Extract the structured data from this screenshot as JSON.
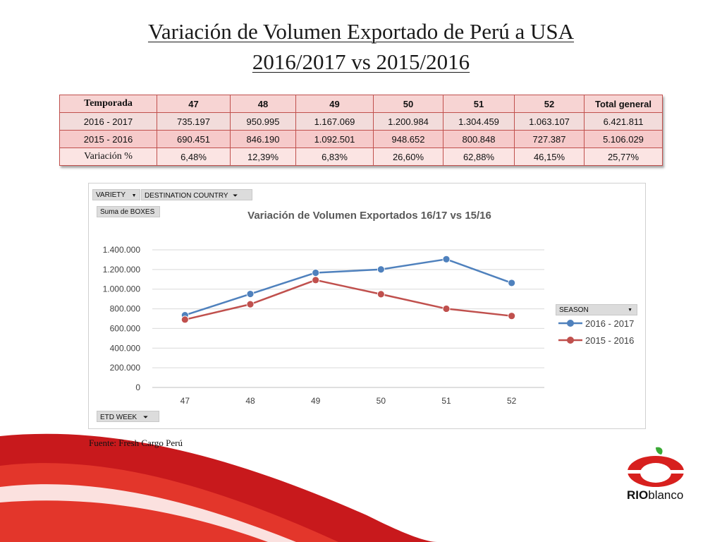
{
  "title": {
    "line1": "Variación de Volumen Exportado de Perú a USA",
    "line2": "2016/2017 vs 2015/2016"
  },
  "table": {
    "headers": [
      "Temporada",
      "47",
      "48",
      "49",
      "50",
      "51",
      "52",
      "Total general"
    ],
    "rows": [
      [
        "2016 - 2017",
        "735.197",
        "950.995",
        "1.167.069",
        "1.200.984",
        "1.304.459",
        "1.063.107",
        "6.421.811"
      ],
      [
        "2015 - 2016",
        "690.451",
        "846.190",
        "1.092.501",
        "948.652",
        "800.848",
        "727.387",
        "5.106.029"
      ],
      [
        "Variación %",
        "6,48%",
        "12,39%",
        "6,83%",
        "26,60%",
        "62,88%",
        "46,15%",
        "25,77%"
      ]
    ]
  },
  "pivot_controls": {
    "variety": "VARIETY",
    "destination": "DESTINATION COUNTRY",
    "sum_label": "Suma de BOXES",
    "etd_week": "ETD WEEK",
    "season": "SEASON"
  },
  "chart_data": {
    "type": "line",
    "title": "Variación de Volumen Exportados 16/17 vs 15/16",
    "categories": [
      "47",
      "48",
      "49",
      "50",
      "51",
      "52"
    ],
    "series": [
      {
        "name": "2016 - 2017",
        "values": [
          735197,
          950995,
          1167069,
          1200984,
          1304459,
          1063107
        ],
        "color": "#4f81bd"
      },
      {
        "name": "2015 - 2016",
        "values": [
          690451,
          846190,
          1092501,
          948652,
          800848,
          727387
        ],
        "color": "#c0504d"
      }
    ],
    "ylim": [
      0,
      1400000
    ],
    "yticks": [
      0,
      200000,
      400000,
      600000,
      800000,
      1000000,
      1200000,
      1400000
    ],
    "ytick_labels": [
      "0",
      "200.000",
      "400.000",
      "600.000",
      "800.000",
      "1.000.000",
      "1.200.000",
      "1.400.000"
    ],
    "xlabel": "",
    "ylabel": "",
    "grid": true,
    "legend_position": "right"
  },
  "footnote": "Fuente: Fresh Cargo Perú",
  "logo": {
    "bold": "RIO",
    "rest": "blanco"
  },
  "colors": {
    "brand_red": "#d7201e",
    "brand_green": "#3aa935",
    "table_border": "#c0504d"
  }
}
